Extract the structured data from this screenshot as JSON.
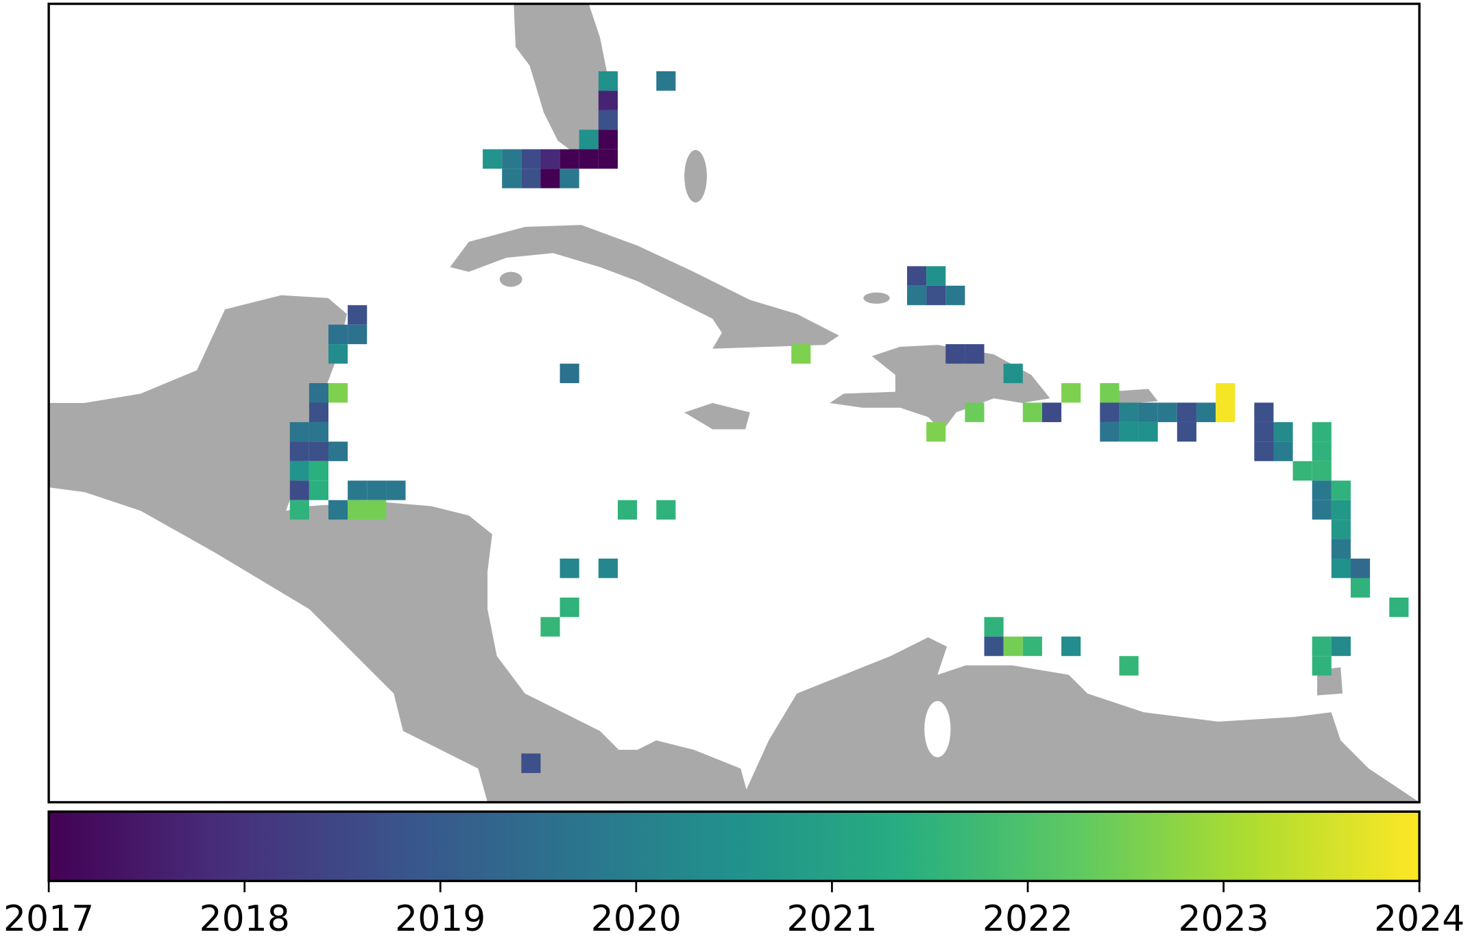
{
  "chart_data": {
    "type": "grid_map",
    "xlim": [
      -94.75,
      -59.22
    ],
    "ylim": [
      7.25,
      27.73
    ],
    "cell_size": 0.5,
    "colormap": "viridis",
    "land_color": "#a9a9a9",
    "colorbar": {
      "lim": [
        2017,
        2024
      ],
      "ticks": [
        2017,
        2018,
        2019,
        2020,
        2021,
        2022,
        2023,
        2024
      ]
    },
    "cells": [
      {
        "lon": -80.25,
        "lat": 25.75,
        "year": 2020.5
      },
      {
        "lon": -78.75,
        "lat": 25.75,
        "year": 2019.8
      },
      {
        "lon": -80.25,
        "lat": 25.25,
        "year": 2017.7
      },
      {
        "lon": -80.25,
        "lat": 24.75,
        "year": 2018.7
      },
      {
        "lon": -80.75,
        "lat": 24.25,
        "year": 2020.5
      },
      {
        "lon": -80.25,
        "lat": 24.25,
        "year": 2017.0
      },
      {
        "lon": -83.25,
        "lat": 23.75,
        "year": 2020.6
      },
      {
        "lon": -82.75,
        "lat": 23.75,
        "year": 2019.8
      },
      {
        "lon": -82.25,
        "lat": 23.75,
        "year": 2018.6
      },
      {
        "lon": -81.75,
        "lat": 23.75,
        "year": 2017.8
      },
      {
        "lon": -81.25,
        "lat": 23.75,
        "year": 2017.0
      },
      {
        "lon": -80.75,
        "lat": 23.75,
        "year": 2017.0
      },
      {
        "lon": -80.25,
        "lat": 23.75,
        "year": 2017.0
      },
      {
        "lon": -82.75,
        "lat": 23.25,
        "year": 2019.8
      },
      {
        "lon": -82.25,
        "lat": 23.25,
        "year": 2018.7
      },
      {
        "lon": -81.75,
        "lat": 23.25,
        "year": 2017.0
      },
      {
        "lon": -81.25,
        "lat": 23.25,
        "year": 2019.8
      },
      {
        "lon": -72.25,
        "lat": 20.75,
        "year": 2018.6
      },
      {
        "lon": -71.75,
        "lat": 20.75,
        "year": 2020.5
      },
      {
        "lon": -72.25,
        "lat": 20.25,
        "year": 2019.8
      },
      {
        "lon": -71.75,
        "lat": 20.25,
        "year": 2018.7
      },
      {
        "lon": -71.25,
        "lat": 20.25,
        "year": 2019.8
      },
      {
        "lon": -86.75,
        "lat": 19.75,
        "year": 2018.7
      },
      {
        "lon": -87.25,
        "lat": 19.25,
        "year": 2019.6
      },
      {
        "lon": -86.75,
        "lat": 19.25,
        "year": 2019.6
      },
      {
        "lon": -87.25,
        "lat": 18.75,
        "year": 2020.4
      },
      {
        "lon": -75.25,
        "lat": 18.75,
        "year": 2022.6
      },
      {
        "lon": -71.25,
        "lat": 18.75,
        "year": 2018.6
      },
      {
        "lon": -70.75,
        "lat": 18.75,
        "year": 2018.6
      },
      {
        "lon": -81.25,
        "lat": 18.25,
        "year": 2019.6
      },
      {
        "lon": -69.75,
        "lat": 18.25,
        "year": 2020.5
      },
      {
        "lon": -87.75,
        "lat": 17.75,
        "year": 2019.6
      },
      {
        "lon": -87.25,
        "lat": 17.75,
        "year": 2022.6
      },
      {
        "lon": -68.25,
        "lat": 17.75,
        "year": 2022.6
      },
      {
        "lon": -67.25,
        "lat": 17.75,
        "year": 2022.5
      },
      {
        "lon": -64.25,
        "lat": 17.75,
        "year": 2023.9
      },
      {
        "lon": -87.75,
        "lat": 17.25,
        "year": 2018.7
      },
      {
        "lon": -70.75,
        "lat": 17.25,
        "year": 2022.4
      },
      {
        "lon": -69.25,
        "lat": 17.25,
        "year": 2022.5
      },
      {
        "lon": -68.75,
        "lat": 17.25,
        "year": 2018.6
      },
      {
        "lon": -67.25,
        "lat": 17.25,
        "year": 2018.7
      },
      {
        "lon": -66.75,
        "lat": 17.25,
        "year": 2020.1
      },
      {
        "lon": -66.25,
        "lat": 17.25,
        "year": 2019.8
      },
      {
        "lon": -65.75,
        "lat": 17.25,
        "year": 2019.8
      },
      {
        "lon": -65.25,
        "lat": 17.25,
        "year": 2018.7
      },
      {
        "lon": -64.75,
        "lat": 17.25,
        "year": 2019.8
      },
      {
        "lon": -64.25,
        "lat": 17.25,
        "year": 2023.9
      },
      {
        "lon": -63.25,
        "lat": 17.25,
        "year": 2018.7
      },
      {
        "lon": -88.25,
        "lat": 16.75,
        "year": 2019.7
      },
      {
        "lon": -87.75,
        "lat": 16.75,
        "year": 2019.7
      },
      {
        "lon": -71.75,
        "lat": 16.75,
        "year": 2022.6
      },
      {
        "lon": -67.25,
        "lat": 16.75,
        "year": 2019.7
      },
      {
        "lon": -66.75,
        "lat": 16.75,
        "year": 2020.5
      },
      {
        "lon": -66.25,
        "lat": 16.75,
        "year": 2020.5
      },
      {
        "lon": -65.25,
        "lat": 16.75,
        "year": 2018.7
      },
      {
        "lon": -63.25,
        "lat": 16.75,
        "year": 2018.7
      },
      {
        "lon": -62.75,
        "lat": 16.75,
        "year": 2020.3
      },
      {
        "lon": -61.75,
        "lat": 16.75,
        "year": 2021.5
      },
      {
        "lon": -88.25,
        "lat": 16.25,
        "year": 2018.7
      },
      {
        "lon": -87.75,
        "lat": 16.25,
        "year": 2018.7
      },
      {
        "lon": -87.25,
        "lat": 16.25,
        "year": 2019.7
      },
      {
        "lon": -63.25,
        "lat": 16.25,
        "year": 2018.7
      },
      {
        "lon": -62.75,
        "lat": 16.25,
        "year": 2019.9
      },
      {
        "lon": -61.75,
        "lat": 16.25,
        "year": 2021.5
      },
      {
        "lon": -88.25,
        "lat": 15.75,
        "year": 2020.6
      },
      {
        "lon": -87.75,
        "lat": 15.75,
        "year": 2021.4
      },
      {
        "lon": -62.25,
        "lat": 15.75,
        "year": 2021.6
      },
      {
        "lon": -61.75,
        "lat": 15.75,
        "year": 2021.6
      },
      {
        "lon": -88.25,
        "lat": 15.25,
        "year": 2018.6
      },
      {
        "lon": -87.75,
        "lat": 15.25,
        "year": 2021.4
      },
      {
        "lon": -86.75,
        "lat": 15.25,
        "year": 2019.8
      },
      {
        "lon": -86.25,
        "lat": 15.25,
        "year": 2019.8
      },
      {
        "lon": -85.75,
        "lat": 15.25,
        "year": 2019.8
      },
      {
        "lon": -61.75,
        "lat": 15.25,
        "year": 2019.8
      },
      {
        "lon": -61.25,
        "lat": 15.25,
        "year": 2021.5
      },
      {
        "lon": -88.25,
        "lat": 14.75,
        "year": 2021.5
      },
      {
        "lon": -87.25,
        "lat": 14.75,
        "year": 2019.8
      },
      {
        "lon": -86.75,
        "lat": 14.75,
        "year": 2022.5
      },
      {
        "lon": -86.25,
        "lat": 14.75,
        "year": 2022.5
      },
      {
        "lon": -79.75,
        "lat": 14.75,
        "year": 2021.5
      },
      {
        "lon": -78.75,
        "lat": 14.75,
        "year": 2021.5
      },
      {
        "lon": -61.75,
        "lat": 14.75,
        "year": 2019.8
      },
      {
        "lon": -61.25,
        "lat": 14.75,
        "year": 2020.7
      },
      {
        "lon": -61.25,
        "lat": 14.25,
        "year": 2020.7
      },
      {
        "lon": -61.25,
        "lat": 13.75,
        "year": 2019.8
      },
      {
        "lon": -81.25,
        "lat": 13.25,
        "year": 2020.2
      },
      {
        "lon": -80.25,
        "lat": 13.25,
        "year": 2020.2
      },
      {
        "lon": -61.25,
        "lat": 13.25,
        "year": 2020.5
      },
      {
        "lon": -60.75,
        "lat": 13.25,
        "year": 2019.4
      },
      {
        "lon": -60.75,
        "lat": 12.75,
        "year": 2021.5
      },
      {
        "lon": -81.25,
        "lat": 12.25,
        "year": 2021.5
      },
      {
        "lon": -59.75,
        "lat": 12.25,
        "year": 2021.5
      },
      {
        "lon": -81.75,
        "lat": 11.75,
        "year": 2021.6
      },
      {
        "lon": -70.25,
        "lat": 11.75,
        "year": 2021.5
      },
      {
        "lon": -70.25,
        "lat": 11.25,
        "year": 2018.8
      },
      {
        "lon": -69.75,
        "lat": 11.25,
        "year": 2022.5
      },
      {
        "lon": -69.25,
        "lat": 11.25,
        "year": 2021.6
      },
      {
        "lon": -68.25,
        "lat": 11.25,
        "year": 2020.4
      },
      {
        "lon": -61.75,
        "lat": 11.25,
        "year": 2021.5
      },
      {
        "lon": -61.25,
        "lat": 11.25,
        "year": 2020.3
      },
      {
        "lon": -66.75,
        "lat": 10.75,
        "year": 2021.6
      },
      {
        "lon": -61.75,
        "lat": 10.75,
        "year": 2021.5
      },
      {
        "lon": -82.25,
        "lat": 8.25,
        "year": 2018.7
      }
    ]
  }
}
